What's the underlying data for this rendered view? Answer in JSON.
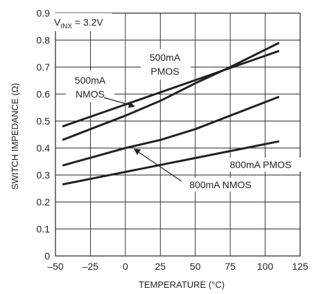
{
  "chart_data": {
    "type": "line",
    "title": "",
    "xlabel": "TEMPERATURE (°C)",
    "ylabel": "SWITCH IMPEDANCE (Ω)",
    "xlim": [
      -50,
      125
    ],
    "ylim": [
      0,
      0.9
    ],
    "x_ticks": [
      -50,
      -25,
      0,
      25,
      50,
      75,
      100,
      125
    ],
    "x_tick_labels": [
      "–50",
      "–25",
      "0",
      "25",
      "50",
      "75",
      "100",
      "125"
    ],
    "y_ticks": [
      0,
      0.1,
      0.2,
      0.3,
      0.4,
      0.5,
      0.6,
      0.7,
      0.8,
      0.9
    ],
    "y_tick_labels": [
      "0",
      "0.1",
      "0.2",
      "0.3",
      "0.4",
      "0.5",
      "0.6",
      "0.7",
      "0.8",
      "0.9"
    ],
    "grid": true,
    "condition": {
      "main": "V",
      "sub": "INX",
      "rest": " = 3.2V"
    },
    "series": [
      {
        "name": "500mA PMOS",
        "x": [
          -45,
          110
        ],
        "y": [
          0.48,
          0.76
        ]
      },
      {
        "name": "500mA NMOS",
        "x": [
          -45,
          0,
          25,
          50,
          75,
          110
        ],
        "y": [
          0.43,
          0.52,
          0.575,
          0.64,
          0.7,
          0.79
        ]
      },
      {
        "name": "800mA PMOS",
        "x": [
          -45,
          0,
          25,
          50,
          75,
          110
        ],
        "y": [
          0.335,
          0.4,
          0.43,
          0.47,
          0.52,
          0.59
        ]
      },
      {
        "name": "800mA NMOS",
        "x": [
          -45,
          110
        ],
        "y": [
          0.265,
          0.425
        ]
      }
    ],
    "annotations": {
      "pmos500": [
        "500mA",
        "PMOS"
      ],
      "nmos500": [
        "500mA",
        "NMOS"
      ],
      "pmos800": "800mA PMOS",
      "nmos800": "800mA NMOS"
    }
  }
}
